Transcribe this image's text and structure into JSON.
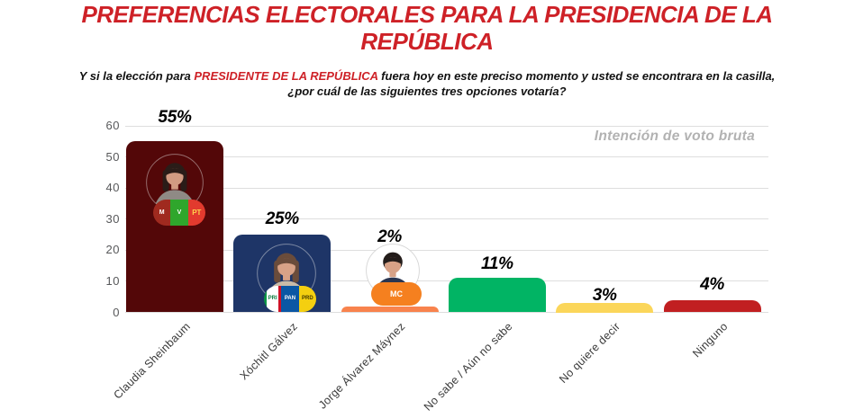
{
  "header": {
    "title_line1": "PREFERENCIAS ELECTORALES PARA LA PRESIDENCIA DE LA",
    "title_line2": "REPÚBLICA",
    "title_color": "#CE2127",
    "question_prefix": "Y si la elección para ",
    "question_highlight": "PRESIDENTE DE LA REPÚBLICA",
    "question_suffix": " fuera hoy en este preciso momento y usted se encontrara en la casilla,",
    "question_line2": "¿por cuál de las siguientes tres opciones votaría?",
    "highlight_color": "#CE2127"
  },
  "chart_data": {
    "type": "bar",
    "title": "PREFERENCIAS ELECTORALES PARA LA PRESIDENCIA DE LA REPÚBLICA",
    "subtitle": "Y si la elección para PRESIDENTE DE LA REPÚBLICA fuera hoy en este preciso momento y usted se encontrara en la casilla, ¿por cuál de las siguientes tres opciones votaría?",
    "annotation": "Intención de voto bruta",
    "annotation_color": "#b2b2b2",
    "categories": [
      "Claudia Sheinbaum",
      "Xóchitl Gálvez",
      "Jorge Álvarez Máynez",
      "No sabe / Aún no sabe",
      "No quiere decir",
      "Ninguno"
    ],
    "values": [
      55,
      25,
      2,
      11,
      3,
      4
    ],
    "value_labels": [
      "55%",
      "25%",
      "2%",
      "11%",
      "3%",
      "4%"
    ],
    "bar_colors": [
      "#530708",
      "#1E3567",
      "#F8834D",
      "#01B464",
      "#FBD65A",
      "#C11F21"
    ],
    "xlabel": "",
    "ylabel": "",
    "ylim": [
      0,
      60
    ],
    "yticks": [
      0,
      10,
      20,
      30,
      40,
      50,
      60
    ],
    "grid": true,
    "legend_position": "none",
    "candidate_photos": [
      "claudia-sheinbaum-photo",
      "xochitl-galvez-photo",
      "jorge-alvarez-maynez-photo"
    ],
    "party_logos": [
      [
        "MORENA",
        "PVEM",
        "PT"
      ],
      [
        "PRI",
        "PAN",
        "PRD"
      ],
      [
        "MC"
      ]
    ],
    "party_logo_colors": {
      "MORENA": "#A02A1F",
      "PVEM": "#2FA62C",
      "PT": "#E23A2E",
      "PRI": "#FFFFFF",
      "PAN": "#0B57A4",
      "PRD": "#F4CF10",
      "MC": "#F5801F"
    }
  }
}
